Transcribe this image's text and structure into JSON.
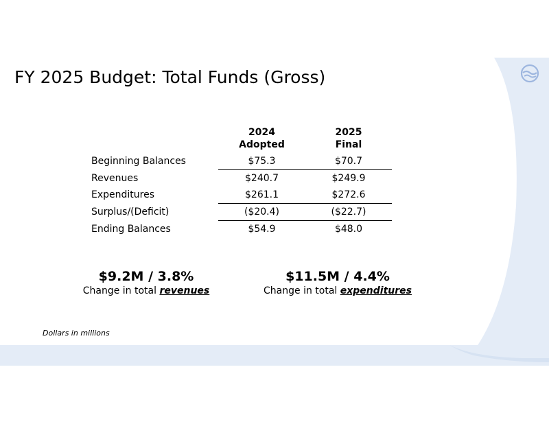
{
  "title": "FY 2025 Budget: Total Funds (Gross)",
  "table": {
    "headers": [
      {
        "line1": "2024",
        "line2": "Adopted"
      },
      {
        "line1": "2025",
        "line2": "Final"
      }
    ],
    "rows": [
      {
        "label": "Beginning Balances",
        "v2024": "$75.3",
        "v2025": "$70.7"
      },
      {
        "label": "Revenues",
        "v2024": "$240.7",
        "v2025": "$249.9"
      },
      {
        "label": "Expenditures",
        "v2024": "$261.1",
        "v2025": "$272.6"
      },
      {
        "label": "Surplus/(Deficit)",
        "v2024": "($20.4)",
        "v2025": "($22.7)"
      },
      {
        "label": "Ending Balances",
        "v2024": "$54.9",
        "v2025": "$48.0"
      }
    ]
  },
  "kpis": [
    {
      "value": "$9.2M / 3.8%",
      "prefix": "Change in total ",
      "emphasis": "revenues"
    },
    {
      "value": "$11.5M / 4.4%",
      "prefix": "Change in total ",
      "emphasis": "expenditures"
    }
  ],
  "note": "Dollars in millions",
  "colors": {
    "accent_light": "#e4ecf7",
    "logo": "#9db6df"
  },
  "icons": {
    "logo": "wave-logo-icon"
  }
}
